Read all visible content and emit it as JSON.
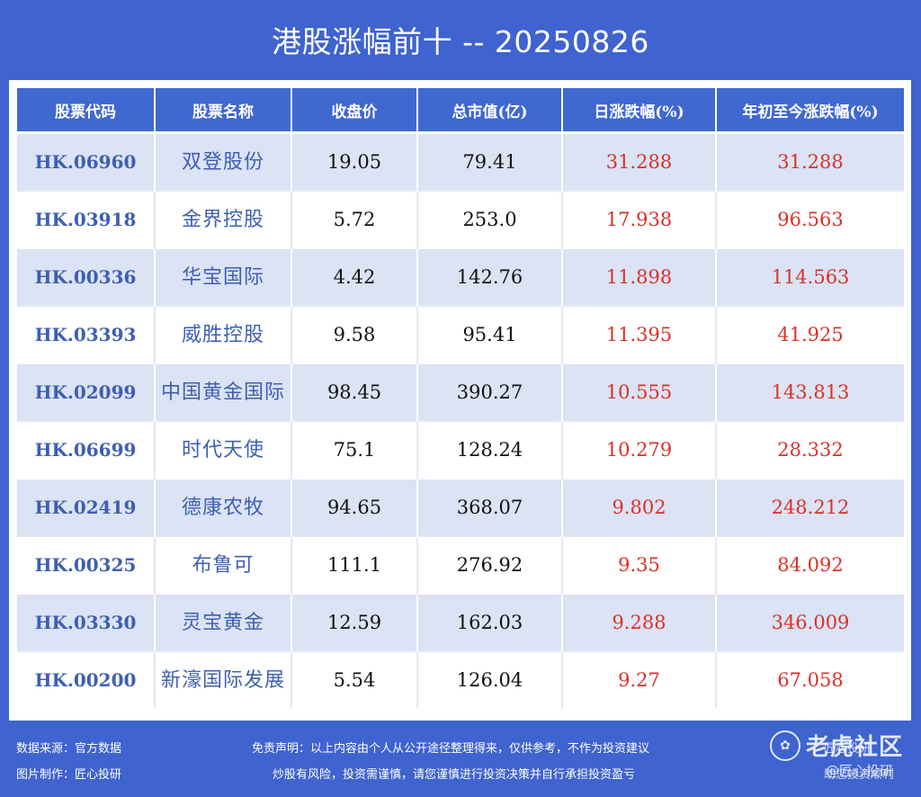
{
  "title": "港股涨幅前十 -- 20250826",
  "table": {
    "headers": [
      "股票代码",
      "股票名称",
      "收盘价",
      "总市值(亿)",
      "日涨跌幅(%)",
      "年初至今涨跌幅(%)"
    ],
    "rows": [
      [
        "HK.06960",
        "双登股份",
        "19.05",
        "79.41",
        "31.288",
        "31.288"
      ],
      [
        "HK.03918",
        "金界控股",
        "5.72",
        "253.0",
        "17.938",
        "96.563"
      ],
      [
        "HK.00336",
        "华宝国际",
        "4.42",
        "142.76",
        "11.898",
        "114.563"
      ],
      [
        "HK.03393",
        "威胜控股",
        "9.58",
        "95.41",
        "11.395",
        "41.925"
      ],
      [
        "HK.02099",
        "中国黄金国际",
        "98.45",
        "390.27",
        "10.555",
        "143.813"
      ],
      [
        "HK.06699",
        "时代天使",
        "75.1",
        "128.24",
        "10.279",
        "28.332"
      ],
      [
        "HK.02419",
        "德康农牧",
        "94.65",
        "368.07",
        "9.802",
        "248.212"
      ],
      [
        "HK.00325",
        "布鲁可",
        "111.1",
        "276.92",
        "9.35",
        "84.092"
      ],
      [
        "HK.03330",
        "灵宝黄金",
        "12.59",
        "162.03",
        "9.288",
        "346.009"
      ],
      [
        "HK.00200",
        "新濠国际发展",
        "5.54",
        "126.04",
        "9.27",
        "67.058"
      ]
    ]
  },
  "footer": {
    "source": "数据来源：官方数据",
    "maker": "图片制作：匠心投研",
    "disclaimer_line1": "免责声明：以上内容由个人从公开途径整理得来，仅供参考，不作为投资建议",
    "disclaimer_line2": "炒股有风险，投资需谨慎，请您谨慎进行投资决策并自行承担投资盈亏",
    "right_line1": "匠心投研",
    "right_line2": "助您投资顺利"
  },
  "watermark": {
    "text": "老虎社区",
    "sub": "@匠心投研"
  },
  "colors": {
    "background": "#3f63cf",
    "header": "#4068d1",
    "row_alt": "#dbe3f4",
    "code_text": "#3d5fb2",
    "gain_red": "#d9322a"
  }
}
